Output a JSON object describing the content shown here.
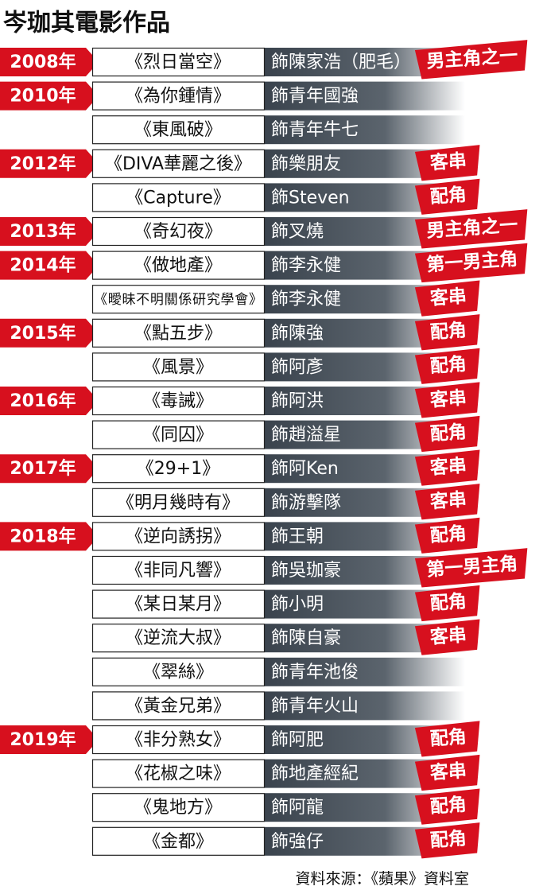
{
  "header": {
    "title": "岑珈其電影作品"
  },
  "rows": [
    {
      "year": "2008年",
      "film": "《烈日當空》",
      "role": "飾陳家浩（肥毛）",
      "tag": "男主角之一"
    },
    {
      "year": "2010年",
      "film": "《為你鍾情》",
      "role": "飾青年國強"
    },
    {
      "film": "《東風破》",
      "role": "飾青年牛七"
    },
    {
      "year": "2012年",
      "film": "《DIVA華麗之後》",
      "role": "飾樂朋友",
      "tag": "客串"
    },
    {
      "film": "《Capture》",
      "role": "飾Steven",
      "tag": "配角"
    },
    {
      "year": "2013年",
      "film": "《奇幻夜》",
      "role": "飾叉燒",
      "tag": "男主角之一"
    },
    {
      "year": "2014年",
      "film": "《做地產》",
      "role": "飾李永健",
      "tag": "第一男主角"
    },
    {
      "film": "《曖昧不明關係研究學會》",
      "role": "飾李永健",
      "tag": "客串"
    },
    {
      "year": "2015年",
      "film": "《點五步》",
      "role": "飾陳強",
      "tag": "配角"
    },
    {
      "film": "《風景》",
      "role": "飾阿彥",
      "tag": "配角"
    },
    {
      "year": "2016年",
      "film": "《毒誡》",
      "role": "飾阿洪",
      "tag": "客串"
    },
    {
      "film": "《同囚》",
      "role": "飾趙溢星",
      "tag": "配角"
    },
    {
      "year": "2017年",
      "film": "《29+1》",
      "role": "飾阿Ken",
      "tag": "客串"
    },
    {
      "film": "《明月幾時有》",
      "role": "飾游擊隊",
      "tag": "客串"
    },
    {
      "year": "2018年",
      "film": "《逆向誘拐》",
      "role": "飾王朝",
      "tag": "配角"
    },
    {
      "film": "《非同凡響》",
      "role": "飾吳珈豪",
      "tag": "第一男主角"
    },
    {
      "film": "《某日某月》",
      "role": "飾小明",
      "tag": "配角"
    },
    {
      "film": "《逆流大叔》",
      "role": "飾陳自豪",
      "tag": "客串"
    },
    {
      "film": "《翠絲》",
      "role": "飾青年池俊"
    },
    {
      "film": "《黃金兄弟》",
      "role": "飾青年火山"
    },
    {
      "year": "2019年",
      "film": "《非分熟女》",
      "role": "飾阿肥",
      "tag": "配角"
    },
    {
      "film": "《花椒之味》",
      "role": "飾地產經紀",
      "tag": "客串"
    },
    {
      "film": "《鬼地方》",
      "role": "飾阿龍",
      "tag": "配角"
    },
    {
      "film": "《金都》",
      "role": "飾強仔",
      "tag": "配角"
    }
  ],
  "footer": {
    "source": "資料來源：《蘋果》資料室"
  }
}
